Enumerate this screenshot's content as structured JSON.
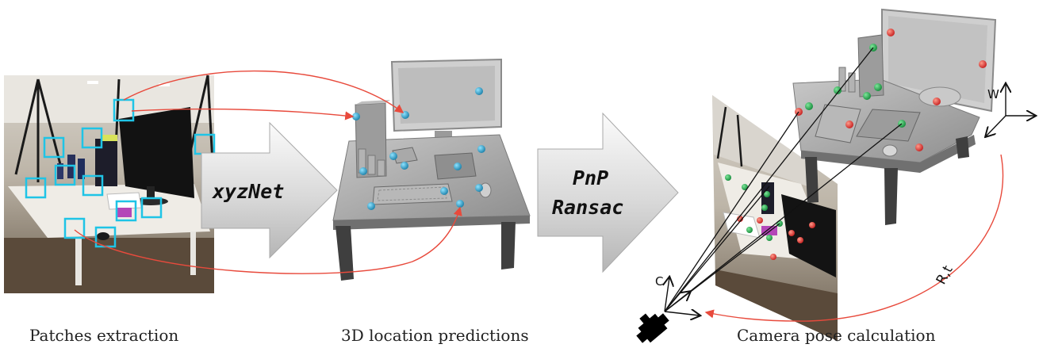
{
  "captions": {
    "patches": "Patches extraction",
    "predictions": "3D location predictions",
    "pose": "Camera pose calculation"
  },
  "arrows": {
    "network": "xyzNet",
    "solver_line1": "PnP",
    "solver_line2": "Ransac"
  },
  "axes": {
    "world": "W",
    "camera": "C",
    "transform": "R,t"
  },
  "colors": {
    "patch_box": "#1fc4e6",
    "correspondence_line": "#e84a3c",
    "predicted_point": "#2a8fb0",
    "inlier_point": "#1fa34a",
    "outlier_point": "#e03a3a",
    "mesh_gray": "#9a9a9a"
  }
}
